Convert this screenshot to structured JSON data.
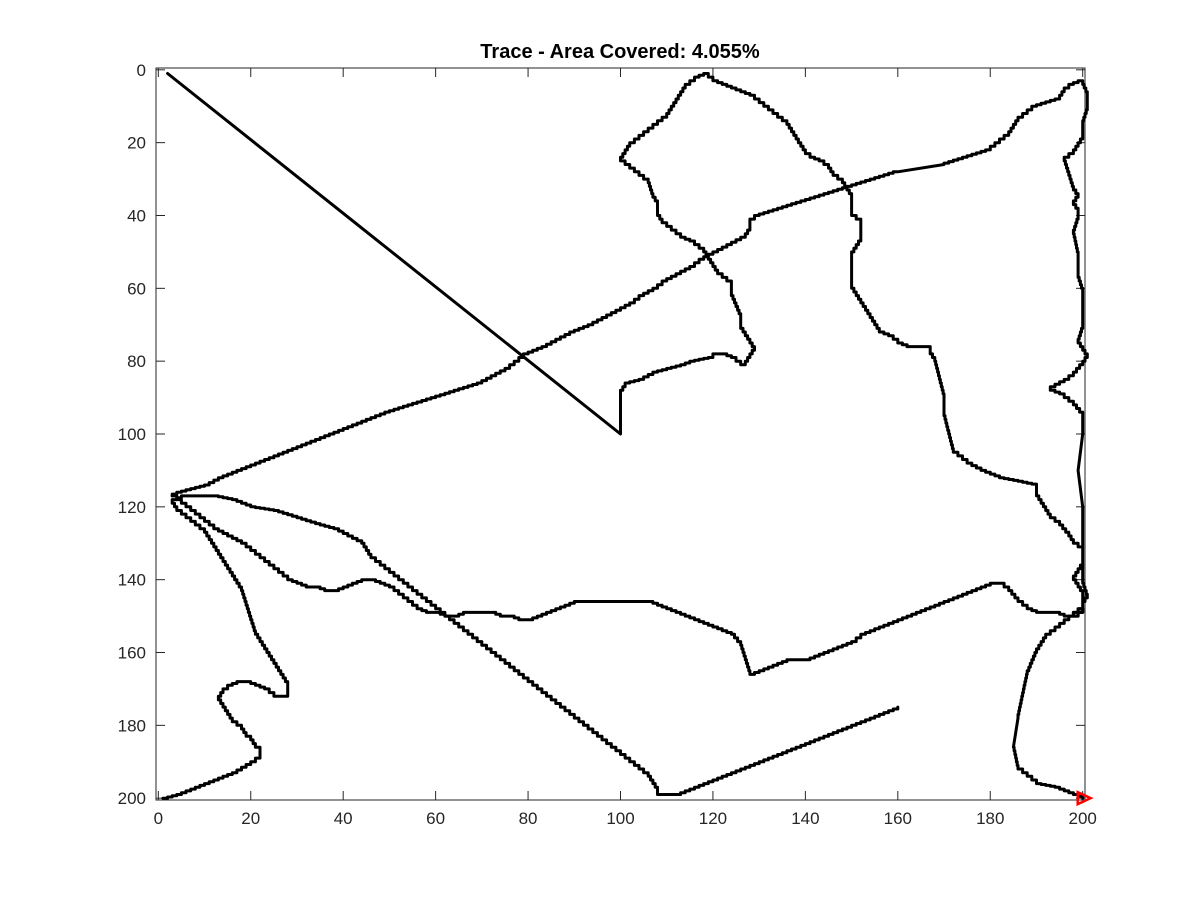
{
  "chart_data": {
    "type": "line",
    "title": "Trace - Area Covered: 4.055%",
    "xlabel": "",
    "ylabel": "",
    "xlim": [
      -0.5,
      200.5
    ],
    "ylim": [
      -0.5,
      200.5
    ],
    "y_reversed": true,
    "grid": false,
    "x_ticks": [
      0,
      20,
      40,
      60,
      80,
      100,
      120,
      140,
      160,
      180,
      200
    ],
    "y_ticks": [
      0,
      20,
      40,
      60,
      80,
      100,
      120,
      140,
      160,
      180,
      200
    ],
    "line_color": "#000000",
    "end_marker": {
      "shape": "triangle-right",
      "color": "#ff0000",
      "x": 200,
      "y": 200
    },
    "series": [
      {
        "x": [
          2,
          100,
          100,
          101,
          104,
          107,
          110,
          113,
          115,
          119,
          120,
          122,
          124,
          125,
          126,
          127,
          128,
          129,
          126,
          126,
          125,
          124,
          124,
          122,
          121,
          120,
          119,
          118,
          117,
          116,
          114,
          112,
          111,
          110,
          109,
          108,
          108,
          107,
          106,
          104,
          102,
          100,
          102,
          104,
          106,
          108,
          110,
          111,
          112,
          113,
          114,
          116,
          118,
          120,
          122,
          124,
          126,
          128,
          130,
          132,
          134,
          136,
          137,
          138,
          139,
          140,
          141,
          143,
          145,
          146,
          148,
          149,
          150,
          150,
          152,
          152,
          150,
          150,
          151,
          152,
          153,
          154,
          155,
          156,
          158,
          160,
          162
        ],
        "y": [
          1,
          100,
          88,
          86,
          85,
          83,
          82,
          81,
          80,
          79,
          78,
          78,
          79,
          80,
          81,
          80,
          78,
          76,
          70,
          67,
          64,
          61,
          58,
          56,
          55,
          53,
          51,
          49,
          48,
          47,
          46,
          44,
          43,
          42,
          41,
          39,
          36,
          34,
          30,
          28,
          26,
          24,
          20,
          18,
          16,
          14,
          12,
          10,
          8,
          6,
          4,
          2,
          1,
          3,
          4,
          5,
          6,
          7,
          9,
          11,
          13,
          15,
          17,
          19,
          21,
          23,
          24,
          25,
          27,
          29,
          31,
          33,
          35,
          40,
          42,
          47,
          51,
          60,
          62,
          64,
          66,
          68,
          70,
          72,
          73,
          75,
          76
        ]
      },
      {
        "x": [
          162,
          167,
          167,
          168,
          169,
          170,
          170,
          171,
          172,
          175,
          178,
          182,
          186,
          190,
          190,
          191,
          192,
          193,
          195,
          197,
          198,
          200,
          200,
          198,
          200,
          200,
          198,
          200,
          200,
          201,
          200,
          200,
          200,
          199,
          200,
          200,
          198,
          196,
          194,
          193,
          196,
          198,
          200,
          201,
          200,
          199,
          200,
          200,
          200,
          199,
          199,
          198,
          199,
          199,
          198,
          199,
          198,
          197,
          196,
          198,
          199,
          200,
          200,
          201,
          201,
          200,
          198,
          196,
          195,
          190,
          186,
          184,
          182,
          180,
          175,
          170,
          160,
          155,
          150,
          145,
          140,
          135,
          130,
          128,
          128,
          127,
          124,
          121,
          118,
          116,
          113,
          110,
          108,
          105,
          103,
          100,
          97,
          94,
          90,
          87,
          84,
          80,
          78,
          76,
          73,
          70,
          65,
          60,
          55,
          50,
          46,
          42,
          38,
          34,
          30,
          26,
          22,
          18,
          14,
          11,
          8,
          5,
          3
        ],
        "y": [
          76,
          76,
          78,
          80,
          85,
          90,
          95,
          100,
          105,
          108,
          110,
          112,
          113,
          114,
          117,
          119,
          121,
          123,
          125,
          128,
          130,
          132,
          136,
          140,
          144,
          148,
          150,
          148,
          146,
          144,
          140,
          130,
          120,
          110,
          100,
          94,
          91,
          89,
          88,
          87,
          85,
          83,
          80,
          78,
          76,
          74,
          70,
          65,
          60,
          56,
          50,
          44,
          40,
          38,
          36,
          34,
          32,
          28,
          24,
          22,
          20,
          18,
          14,
          10,
          6,
          3,
          4,
          6,
          8,
          10,
          14,
          18,
          20,
          22,
          24,
          26,
          28,
          30,
          32,
          34,
          36,
          38,
          40,
          42,
          44,
          46,
          48,
          50,
          52,
          54,
          56,
          58,
          60,
          62,
          64,
          66,
          68,
          70,
          72,
          74,
          76,
          78,
          80,
          82,
          84,
          86,
          88,
          90,
          92,
          94,
          96,
          98,
          100,
          102,
          104,
          106,
          108,
          110,
          112,
          114,
          115,
          116,
          117
        ]
      },
      {
        "x": [
          3,
          7,
          10,
          12,
          15,
          18,
          20,
          22,
          24,
          26,
          28,
          30,
          32,
          34,
          36,
          38,
          40,
          42,
          44,
          46,
          48,
          50,
          52,
          54,
          56,
          58,
          60,
          62,
          64,
          66,
          68,
          70,
          72,
          74,
          76,
          78,
          80,
          82,
          84,
          86,
          88,
          90,
          92,
          94,
          96,
          98,
          100,
          102,
          104,
          106,
          108,
          110,
          112,
          114,
          116,
          118,
          120,
          122,
          124,
          126,
          127,
          128,
          130,
          132,
          134,
          136,
          138,
          140,
          142,
          144,
          146,
          148,
          150,
          152,
          154,
          156,
          158,
          160,
          162,
          164,
          166,
          168,
          170,
          172,
          174,
          176,
          178,
          180,
          182,
          184,
          186,
          188,
          190,
          192,
          194,
          196,
          198,
          199,
          200
        ],
        "y": [
          117,
          121,
          124,
          126,
          128,
          130,
          132,
          134,
          136,
          138,
          140,
          141,
          142,
          142,
          143,
          143,
          142,
          141,
          140,
          140,
          141,
          142,
          144,
          146,
          148,
          149,
          149,
          150,
          150,
          149,
          149,
          149,
          149,
          150,
          150,
          151,
          151,
          150,
          149,
          148,
          147,
          146,
          146,
          146,
          146,
          146,
          146,
          146,
          146,
          146,
          147,
          148,
          149,
          150,
          151,
          152,
          153,
          154,
          155,
          158,
          162,
          166,
          165,
          164,
          163,
          162,
          162,
          162,
          161,
          160,
          159,
          158,
          157,
          155,
          154,
          153,
          152,
          151,
          150,
          149,
          148,
          147,
          146,
          145,
          144,
          143,
          142,
          141,
          141,
          143,
          146,
          148,
          149,
          149,
          149,
          150,
          150,
          149,
          148
        ]
      },
      {
        "x": [
          200,
          196,
          192,
          190,
          188,
          187,
          186,
          185,
          186,
          188,
          190,
          194,
          196,
          198,
          200
        ],
        "y": [
          148,
          152,
          156,
          160,
          166,
          172,
          178,
          186,
          192,
          194,
          196,
          197,
          198,
          199,
          200
        ]
      },
      {
        "x": [
          1,
          4,
          8,
          12,
          16,
          20,
          22,
          22,
          21,
          20,
          19,
          18,
          16,
          15,
          14,
          13,
          14,
          15,
          17,
          19,
          21,
          23,
          25,
          27,
          28,
          28,
          27,
          26,
          25,
          24,
          23,
          22,
          21,
          20,
          19,
          18,
          16,
          14,
          12,
          10,
          8,
          6,
          4,
          3,
          5,
          8,
          12,
          16,
          20,
          25,
          30,
          35,
          38,
          41,
          44,
          46,
          48,
          50,
          52,
          54,
          56,
          58,
          60,
          62,
          64,
          66,
          68,
          70,
          72,
          74,
          76,
          78,
          80,
          82,
          84,
          86,
          88,
          90,
          92,
          94,
          96,
          98,
          100,
          102,
          104,
          106,
          107,
          108,
          108,
          110,
          112,
          114,
          116,
          118,
          120,
          122,
          124,
          126,
          128,
          130,
          132,
          134,
          136,
          138,
          140,
          142,
          144,
          146,
          148,
          150,
          152,
          154,
          156,
          158,
          160
        ],
        "y": [
          200,
          199,
          197,
          195,
          193,
          190,
          188,
          186,
          185,
          183,
          182,
          180,
          178,
          176,
          174,
          172,
          170,
          169,
          168,
          168,
          169,
          170,
          172,
          172,
          171,
          168,
          166,
          164,
          162,
          160,
          158,
          156,
          154,
          150,
          146,
          142,
          138,
          134,
          130,
          126,
          124,
          122,
          120,
          118,
          117,
          117,
          117,
          118,
          120,
          121,
          123,
          125,
          126,
          128,
          130,
          134,
          136,
          138,
          140,
          142,
          144,
          146,
          148,
          150,
          152,
          154,
          156,
          158,
          160,
          162,
          164,
          166,
          168,
          170,
          172,
          174,
          176,
          178,
          180,
          182,
          184,
          186,
          188,
          190,
          192,
          194,
          196,
          198,
          199,
          199,
          199,
          198,
          197,
          196,
          195,
          194,
          193,
          192,
          191,
          190,
          189,
          188,
          187,
          186,
          185,
          184,
          183,
          182,
          181,
          180,
          179,
          178,
          177,
          176,
          175
        ]
      }
    ]
  }
}
